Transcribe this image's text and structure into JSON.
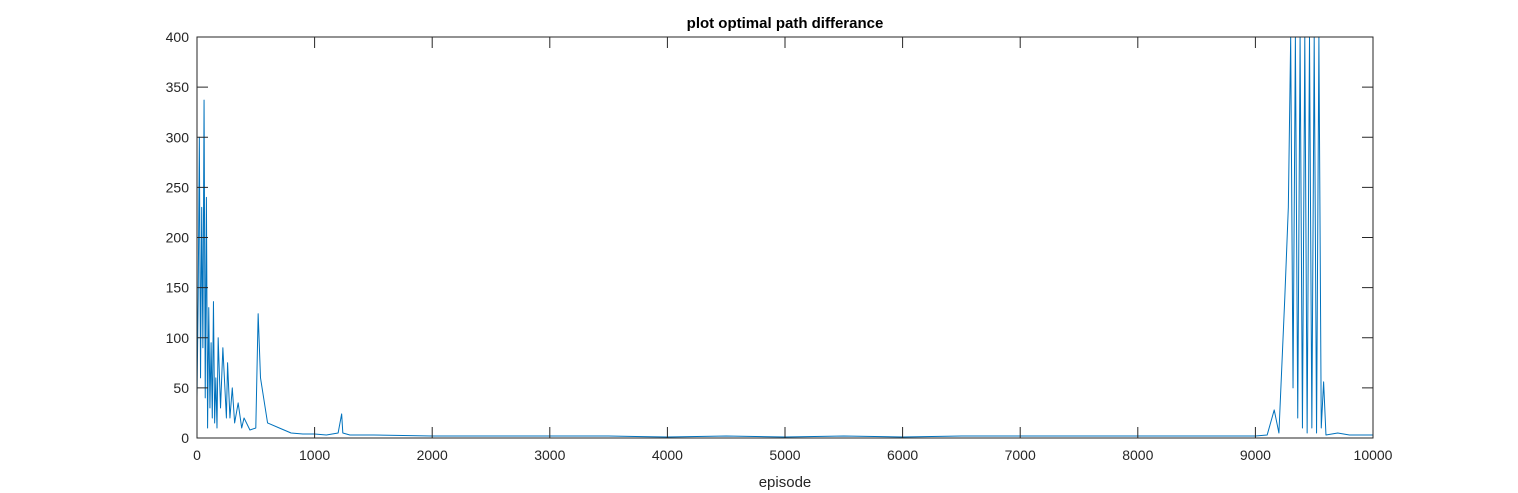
{
  "chart_data": {
    "type": "line",
    "title": "plot optimal path differance",
    "xlabel": "episode",
    "ylabel": "",
    "xlim": [
      0,
      10000
    ],
    "ylim": [
      0,
      400
    ],
    "xticks": [
      0,
      1000,
      2000,
      3000,
      4000,
      5000,
      6000,
      7000,
      8000,
      9000,
      10000
    ],
    "yticks": [
      0,
      50,
      100,
      150,
      200,
      250,
      300,
      350,
      400
    ],
    "grid": false,
    "box": true,
    "line_color": "#0072BD",
    "axis_color": "#262626",
    "series": [
      {
        "name": "",
        "x": [
          0,
          10,
          20,
          30,
          40,
          50,
          60,
          70,
          80,
          90,
          100,
          110,
          120,
          130,
          140,
          150,
          160,
          170,
          180,
          200,
          220,
          250,
          260,
          280,
          300,
          320,
          350,
          380,
          400,
          450,
          500,
          520,
          540,
          600,
          700,
          800,
          900,
          1000,
          1100,
          1200,
          1230,
          1240,
          1300,
          1400,
          1500,
          2000,
          2500,
          3000,
          3500,
          4000,
          4500,
          5000,
          5500,
          6000,
          6500,
          7000,
          7500,
          8000,
          8500,
          9000,
          9100,
          9160,
          9200,
          9250,
          9280,
          9300,
          9320,
          9340,
          9360,
          9380,
          9400,
          9420,
          9440,
          9460,
          9480,
          9500,
          9520,
          9540,
          9560,
          9580,
          9600,
          9700,
          9800,
          9900,
          10000
        ],
        "y": [
          40,
          140,
          300,
          60,
          230,
          90,
          337,
          40,
          240,
          10,
          130,
          30,
          95,
          20,
          136,
          15,
          60,
          10,
          100,
          30,
          90,
          20,
          75,
          20,
          50,
          15,
          35,
          10,
          20,
          8,
          10,
          124,
          60,
          15,
          10,
          5,
          4,
          4,
          3,
          5,
          24,
          5,
          3,
          3,
          3,
          2,
          2,
          2,
          2,
          1,
          2,
          1,
          2,
          1,
          2,
          2,
          2,
          2,
          2,
          2,
          3,
          28,
          5,
          140,
          230,
          400,
          50,
          400,
          20,
          400,
          10,
          400,
          5,
          400,
          10,
          400,
          5,
          400,
          10,
          56,
          3,
          5,
          3,
          3,
          3
        ]
      }
    ]
  }
}
